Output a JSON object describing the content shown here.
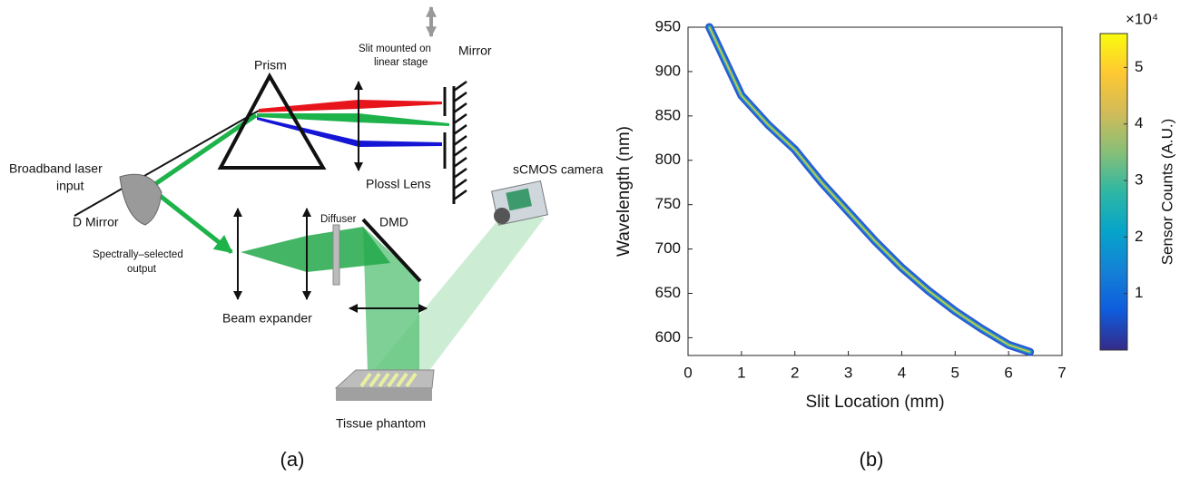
{
  "panel_a": {
    "labels": {
      "prism": "Prism",
      "slit_line1": "Slit mounted on",
      "slit_line2": "linear stage",
      "mirror": "Mirror",
      "laser_line1": "Broadband laser",
      "laser_line2": "input",
      "d_mirror": "D Mirror",
      "lens": "Plossl Lens",
      "camera": "sCMOS camera",
      "diffuser": "Diffuser",
      "dmd": "DMD",
      "output_line1": "Spectrally–selected",
      "output_line2": "output",
      "beam_expander": "Beam expander",
      "phantom": "Tissue phantom"
    },
    "caption": "(a)"
  },
  "chart_data": {
    "type": "line",
    "caption": "(b)",
    "xlabel": "Slit Location (mm)",
    "ylabel": "Wavelength (nm)",
    "x": [
      0.4,
      1,
      1.5,
      2,
      2.5,
      3,
      3.5,
      4,
      4.5,
      5,
      5.5,
      6,
      6.4
    ],
    "series": [
      {
        "color": "#2a5bd7",
        "values": [
          950,
          873,
          840,
          812,
          775,
          742,
          709,
          679,
          653,
          630,
          610,
          592,
          584
        ]
      }
    ],
    "xlim": [
      0,
      7
    ],
    "xticks": [
      0,
      1,
      2,
      3,
      4,
      5,
      6,
      7
    ],
    "ylim": [
      580,
      950
    ],
    "yticks": [
      600,
      650,
      700,
      750,
      800,
      850,
      900,
      950
    ],
    "colorbar": {
      "label": "Sensor Counts (A.U.)",
      "multiplier": "×10⁴",
      "clim": [
        0,
        5.6
      ],
      "ticks": [
        1,
        2,
        3,
        4,
        5
      ],
      "colormap": [
        "#352a87",
        "#0f5cdd",
        "#1481d6",
        "#06a4ca",
        "#2eb7a4",
        "#87bf77",
        "#d1bb59",
        "#fec832",
        "#f9fb0e"
      ]
    }
  }
}
